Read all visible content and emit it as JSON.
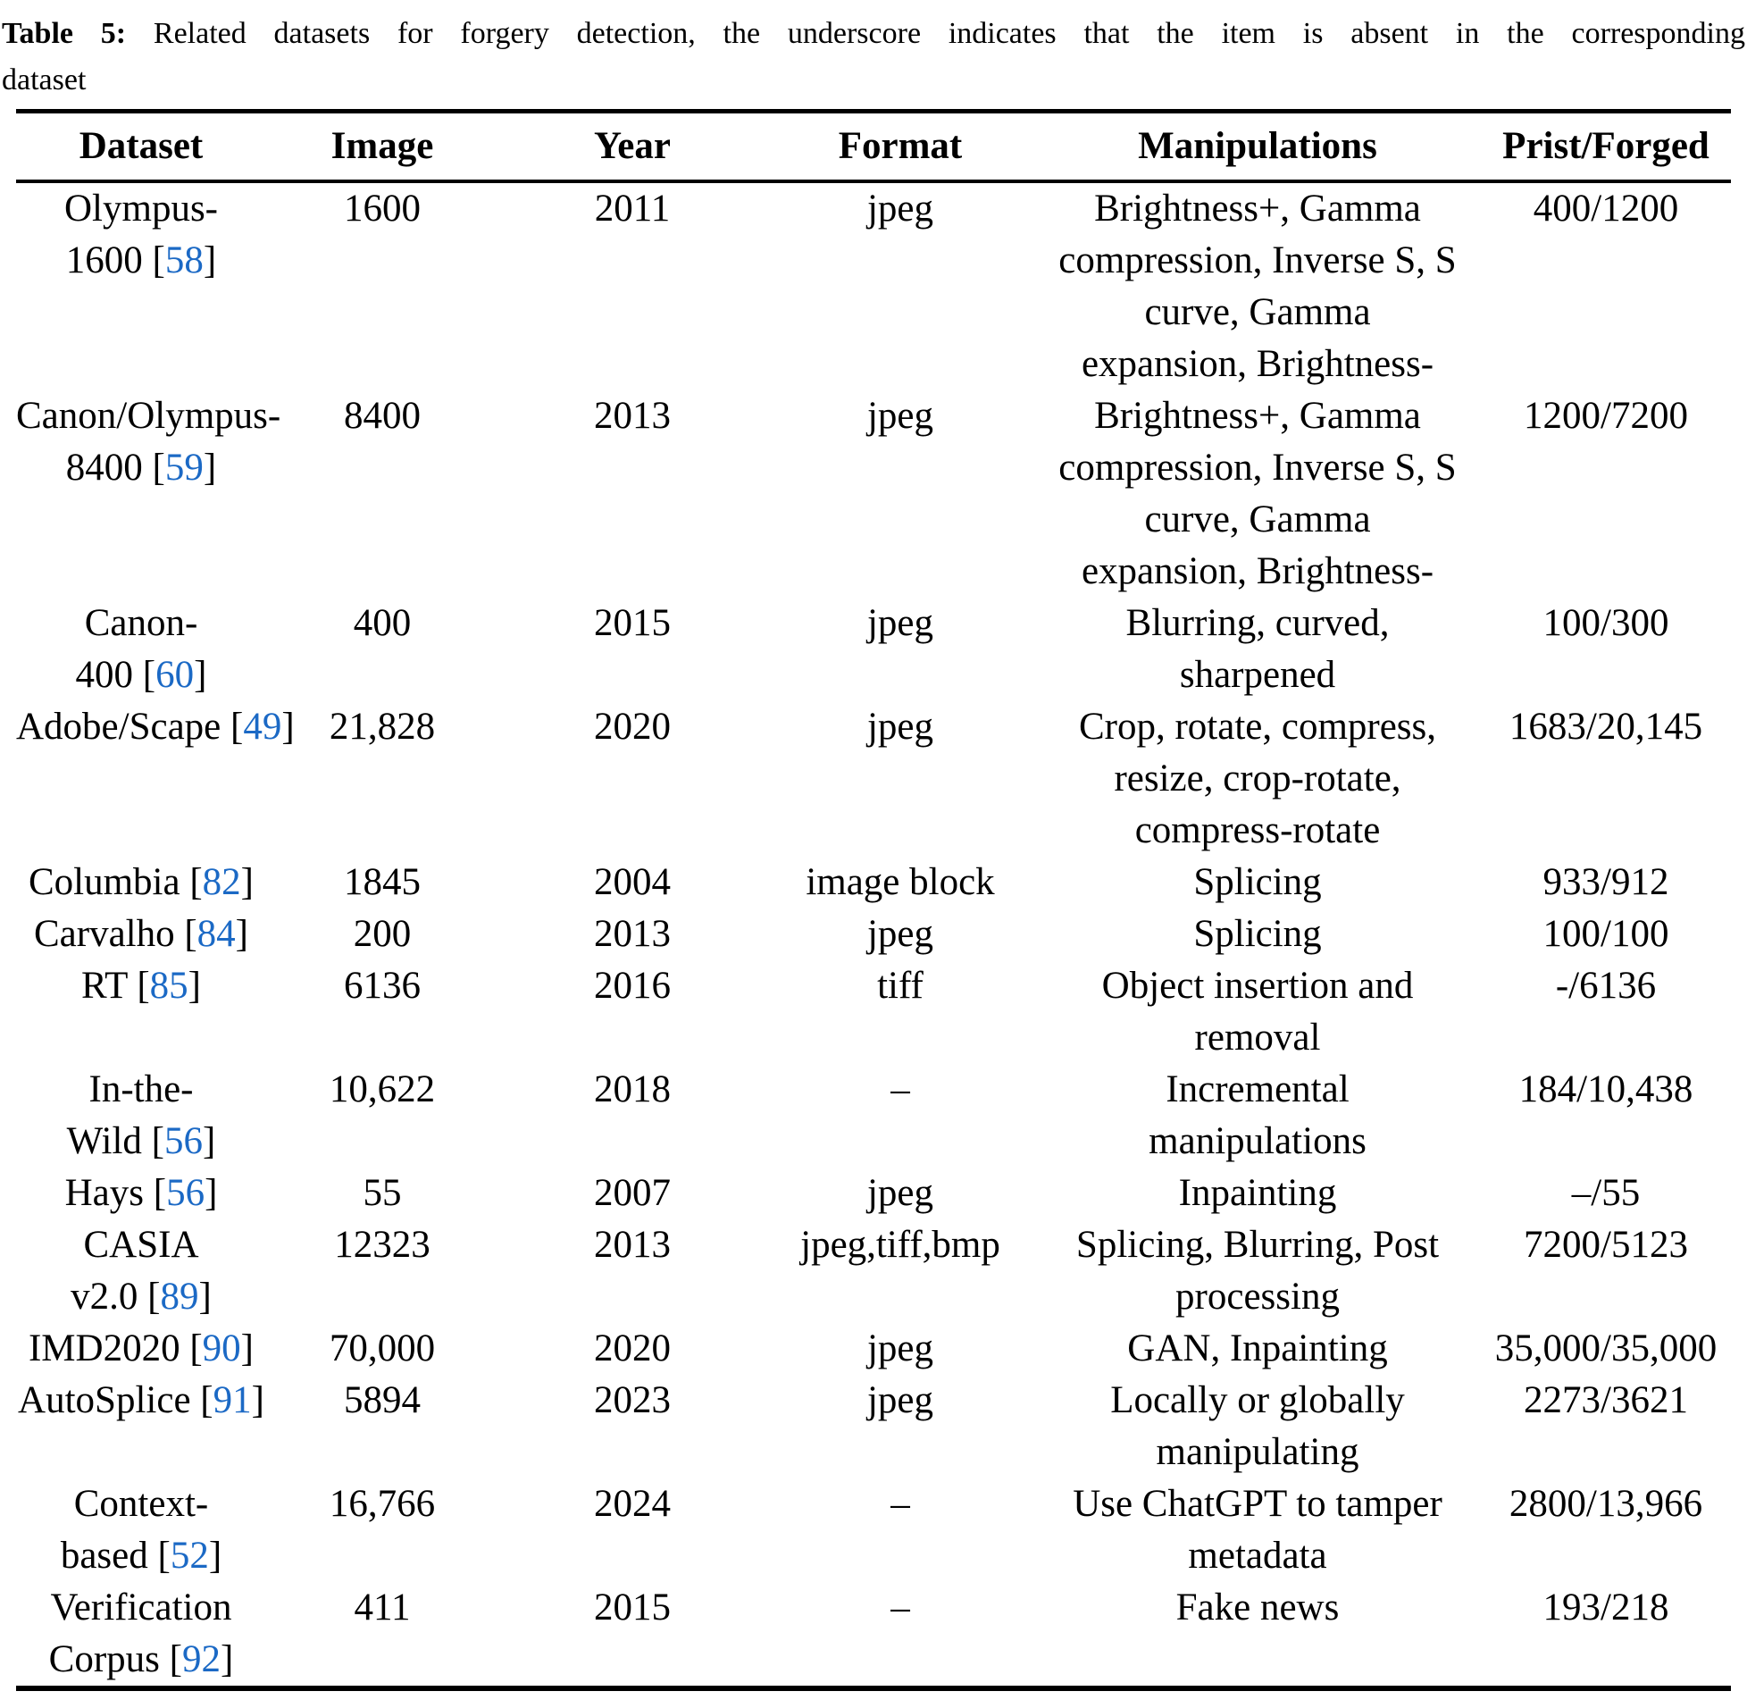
{
  "title": {
    "label": "Table 5:",
    "rest": " Related datasets for forgery detection, the underscore indicates that the item is absent in the corresponding",
    "line2": "dataset"
  },
  "columns": [
    "Dataset",
    "Image",
    "Year",
    "Format",
    "Manipulations",
    "Prist/Forged"
  ],
  "colors": {
    "citation_link": "#1b69c5",
    "text": "#000000",
    "rule": "#000000"
  },
  "rows": [
    {
      "ds_pre": "Olympus-\n1600 [",
      "cite": "58",
      "ds_post": "]",
      "image": "1600",
      "year": "2011",
      "format": "jpeg",
      "manip": "Brightness+, Gamma\ncompression, Inverse S, S\ncurve, Gamma\nexpansion, Brightness-",
      "pf": "400/1200"
    },
    {
      "ds_pre": "Canon/Olympus-\n8400 [",
      "cite": "59",
      "ds_post": "]",
      "image": "8400",
      "year": "2013",
      "format": "jpeg",
      "manip": "Brightness+, Gamma\ncompression, Inverse S, S\ncurve, Gamma\nexpansion, Brightness-",
      "pf": "1200/7200"
    },
    {
      "ds_pre": "Canon-\n400 [",
      "cite": "60",
      "ds_post": "]",
      "image": "400",
      "year": "2015",
      "format": "jpeg",
      "manip": "Blurring, curved,\nsharpened",
      "pf": "100/300"
    },
    {
      "ds_pre": "Adobe/Scape [",
      "cite": "49",
      "ds_post": "]",
      "image": "21,828",
      "year": "2020",
      "format": "jpeg",
      "manip": "Crop, rotate, compress,\nresize, crop-rotate,\ncompress-rotate",
      "pf": "1683/20,145"
    },
    {
      "ds_pre": "Columbia [",
      "cite": "82",
      "ds_post": "]",
      "image": "1845",
      "year": "2004",
      "format": "image block",
      "manip": "Splicing",
      "pf": "933/912"
    },
    {
      "ds_pre": "Carvalho [",
      "cite": "84",
      "ds_post": "]",
      "image": "200",
      "year": "2013",
      "format": "jpeg",
      "manip": "Splicing",
      "pf": "100/100"
    },
    {
      "ds_pre": "RT [",
      "cite": "85",
      "ds_post": "]",
      "image": "6136",
      "year": "2016",
      "format": "tiff",
      "manip": "Object insertion and\nremoval",
      "pf": "-/6136"
    },
    {
      "ds_pre": "In-the-\nWild [",
      "cite": "56",
      "ds_post": "]",
      "image": "10,622",
      "year": "2018",
      "format": "–",
      "manip": "Incremental\nmanipulations",
      "pf": "184/10,438"
    },
    {
      "ds_pre": "Hays [",
      "cite": "56",
      "ds_post": "]",
      "image": "55",
      "year": "2007",
      "format": "jpeg",
      "manip": "Inpainting",
      "pf": "–/55"
    },
    {
      "ds_pre": "CASIA\nv2.0 [",
      "cite": "89",
      "ds_post": "]",
      "image": "12323",
      "year": "2013",
      "format": "jpeg,tiff,bmp",
      "manip": "Splicing, Blurring, Post\nprocessing",
      "pf": "7200/5123"
    },
    {
      "ds_pre": "IMD2020 [",
      "cite": "90",
      "ds_post": "]",
      "image": "70,000",
      "year": "2020",
      "format": "jpeg",
      "manip": "GAN, Inpainting",
      "pf": "35,000/35,000"
    },
    {
      "ds_pre": "AutoSplice [",
      "cite": "91",
      "ds_post": "]",
      "image": "5894",
      "year": "2023",
      "format": "jpeg",
      "manip": "Locally or globally\nmanipulating",
      "pf": "2273/3621"
    },
    {
      "ds_pre": "Context-\nbased [",
      "cite": "52",
      "ds_post": "]",
      "image": "16,766",
      "year": "2024",
      "format": "–",
      "manip": "Use ChatGPT to tamper\nmetadata",
      "pf": "2800/13,966"
    },
    {
      "ds_pre": "Verification\nCorpus [",
      "cite": "92",
      "ds_post": "]",
      "image": "411",
      "year": "2015",
      "format": "–",
      "manip": "Fake news",
      "pf": "193/218"
    }
  ]
}
